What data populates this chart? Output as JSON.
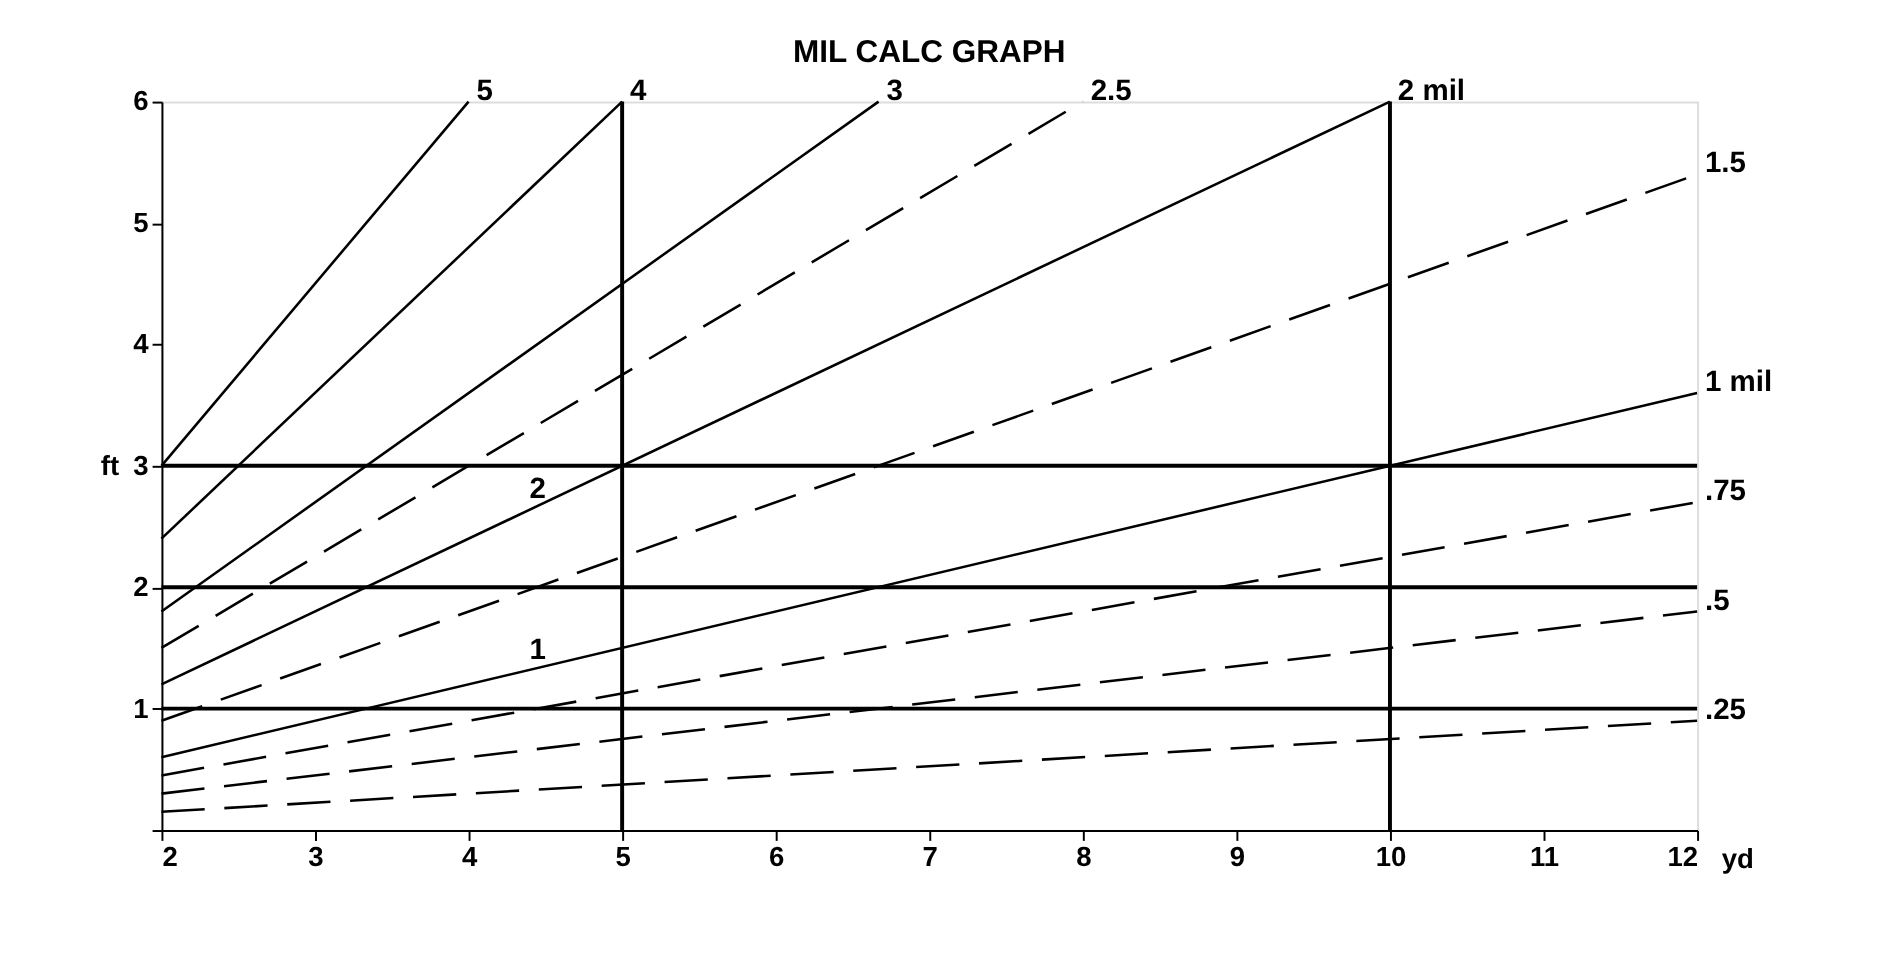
{
  "chart_data": {
    "type": "line",
    "title": "MIL CALC GRAPH",
    "xlabel": "yd",
    "ylabel": "ft",
    "xlim": [
      2,
      12
    ],
    "ylim": [
      0,
      6
    ],
    "xticks": [
      2,
      3,
      4,
      5,
      6,
      7,
      8,
      9,
      10,
      11,
      12
    ],
    "yticks": [
      {
        "value": 0,
        "label": null
      },
      1,
      2,
      3,
      4,
      5,
      6
    ],
    "grid": false,
    "legend": false,
    "marker": "none",
    "series": [
      {
        "name": "5",
        "color": "#000000",
        "line_style": "solid",
        "x": [
          2,
          4
        ],
        "values": [
          3,
          6
        ]
      },
      {
        "name": "4",
        "color": "#000000",
        "line_style": "solid",
        "x": [
          2,
          5
        ],
        "values": [
          2.4,
          6
        ]
      },
      {
        "name": "3",
        "color": "#000000",
        "line_style": "solid",
        "x": [
          2,
          6.67
        ],
        "values": [
          1.8,
          6
        ]
      },
      {
        "name": "2.5",
        "color": "#000000",
        "line_style": "dashed",
        "x": [
          2,
          8
        ],
        "values": [
          1.5,
          6
        ]
      },
      {
        "name": "2 mil",
        "color": "#000000",
        "line_style": "solid",
        "x": [
          2,
          10
        ],
        "values": [
          1.2,
          6
        ]
      },
      {
        "name": "1.5",
        "color": "#000000",
        "line_style": "dashed",
        "x": [
          2,
          12
        ],
        "values": [
          0.9,
          5.4
        ]
      },
      {
        "name": "1 mil",
        "color": "#000000",
        "line_style": "solid",
        "x": [
          2,
          12
        ],
        "values": [
          0.6,
          3.6
        ]
      },
      {
        "name": ".75",
        "color": "#000000",
        "line_style": "dashed",
        "x": [
          2,
          12
        ],
        "values": [
          0.45,
          2.7
        ]
      },
      {
        "name": ".5",
        "color": "#000000",
        "line_style": "dashed",
        "x": [
          2,
          12
        ],
        "values": [
          0.3,
          1.8
        ]
      },
      {
        "name": ".25",
        "color": "#000000",
        "line_style": "dashed",
        "x": [
          2,
          12
        ],
        "values": [
          0.15,
          0.9
        ]
      }
    ],
    "ref_lines": [
      {
        "axis": "y",
        "value": 1,
        "label": null
      },
      {
        "axis": "y",
        "value": 2,
        "label": null
      },
      {
        "axis": "y",
        "value": 3,
        "label": null
      },
      {
        "axis": "x",
        "value": 5,
        "label": null
      },
      {
        "axis": "x",
        "value": 10,
        "label": null
      }
    ],
    "annotations": [
      {
        "text": "2",
        "x": 4.45,
        "y": 2.67
      },
      {
        "text": "1",
        "x": 4.45,
        "y": 1.34
      }
    ]
  }
}
